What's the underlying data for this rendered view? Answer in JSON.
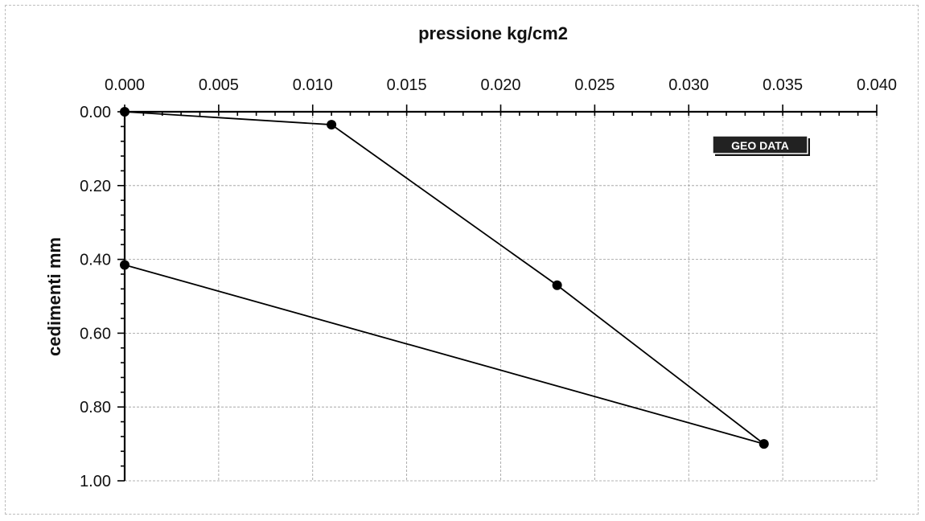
{
  "chart_data": {
    "type": "scatter",
    "title": "",
    "xlabel": "pressione kg/cm2",
    "ylabel": "cedimenti mm",
    "xlim": [
      0,
      0.04
    ],
    "ylim": [
      0,
      1
    ],
    "y_inverted": true,
    "x_axis_position": "top",
    "grid": true,
    "x_ticks": [
      "0.000",
      "0.005",
      "0.010",
      "0.015",
      "0.020",
      "0.025",
      "0.030",
      "0.035",
      "0.040"
    ],
    "y_ticks": [
      "0.00",
      "0.20",
      "0.40",
      "0.60",
      "0.80",
      "1.00"
    ],
    "x_tick_values": [
      0,
      0.005,
      0.01,
      0.015,
      0.02,
      0.025,
      0.03,
      0.035,
      0.04
    ],
    "y_tick_values": [
      0,
      0.2,
      0.4,
      0.6,
      0.8,
      1.0
    ],
    "series": [
      {
        "points": [
          {
            "x": 0.0,
            "y": 0.0
          },
          {
            "x": 0.011,
            "y": 0.035
          },
          {
            "x": 0.023,
            "y": 0.47
          },
          {
            "x": 0.034,
            "y": 0.9
          },
          {
            "x": 0.0,
            "y": 0.415
          }
        ],
        "color": "#000000"
      }
    ],
    "logo_text": "GEO DATA"
  }
}
